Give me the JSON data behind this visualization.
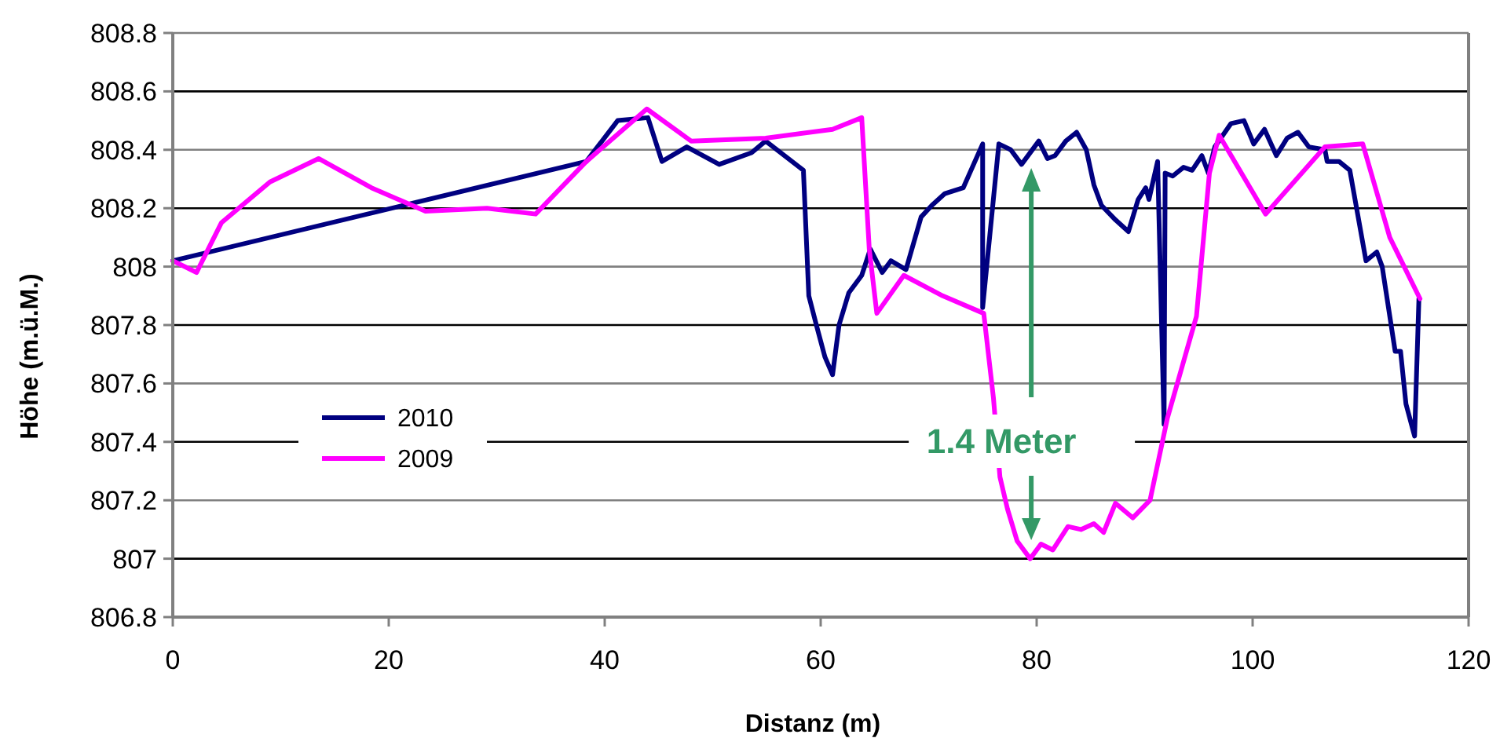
{
  "chart_data": {
    "type": "line",
    "xlabel": "Distanz (m)",
    "ylabel": "Höhe (m.ü.M.)",
    "xlim": [
      0,
      120
    ],
    "xticks": [
      0,
      20,
      40,
      60,
      80,
      100,
      120
    ],
    "ylim": [
      806.8,
      808.8
    ],
    "yticks": [
      {
        "value": 806.8,
        "label": "806.8"
      },
      {
        "value": 807,
        "label": "807"
      },
      {
        "value": 807.2,
        "label": "807.2"
      },
      {
        "value": 807.4,
        "label": "807.4"
      },
      {
        "value": 807.6,
        "label": "807.6"
      },
      {
        "value": 807.8,
        "label": "807.8"
      },
      {
        "value": 808,
        "label": "808"
      },
      {
        "value": 808.2,
        "label": "808.2"
      },
      {
        "value": 808.4,
        "label": "808.4"
      },
      {
        "value": 808.6,
        "label": "808.6"
      },
      {
        "value": 808.8,
        "label": "808.8"
      }
    ],
    "grid": "y",
    "legend": "left",
    "marker": "none",
    "line_style": "solid",
    "annotations": [
      "1.4 Meter"
    ],
    "series": [
      {
        "name": "2010",
        "color": "#000080",
        "x": [
          0,
          38.3,
          41.2,
          44.0,
          45.3,
          47.6,
          50.6,
          53.6,
          54.9,
          58.4,
          58.9,
          59.6,
          60.4,
          61.1,
          61.7,
          62.6,
          63.8,
          64.6,
          65.7,
          66.5,
          67.9,
          69.3,
          70.3,
          71.5,
          73.2,
          75.0,
          75.0,
          76.5,
          77.6,
          78.6,
          80.2,
          81.0,
          81.7,
          82.7,
          83.7,
          84.6,
          85.3,
          86.0,
          87.3,
          88.5,
          89.4,
          90.1,
          90.4,
          91.2,
          91.8,
          91.9,
          92.6,
          93.6,
          94.4,
          95.3,
          95.9,
          96.5,
          98.0,
          99.2,
          100.1,
          101.1,
          102.2,
          103.2,
          104.2,
          105.2,
          106.7,
          106.9,
          108.0,
          109.0,
          110.5,
          111.5,
          112.0,
          113.2,
          113.7,
          114.2,
          115.0,
          115.4
        ],
        "values": [
          808.02,
          808.36,
          808.5,
          808.51,
          808.36,
          808.41,
          808.35,
          808.39,
          808.43,
          808.33,
          807.9,
          807.8,
          807.69,
          807.63,
          807.8,
          807.91,
          807.97,
          808.06,
          807.98,
          808.02,
          807.99,
          808.17,
          808.21,
          808.25,
          808.27,
          808.42,
          807.86,
          808.42,
          808.4,
          808.35,
          808.43,
          808.37,
          808.38,
          808.43,
          808.46,
          808.4,
          808.28,
          808.21,
          808.16,
          808.12,
          808.23,
          808.27,
          808.23,
          808.36,
          807.46,
          808.32,
          808.31,
          808.34,
          808.33,
          808.38,
          808.32,
          808.41,
          808.49,
          808.5,
          808.42,
          808.47,
          808.38,
          808.44,
          808.46,
          808.41,
          808.4,
          808.36,
          808.36,
          808.33,
          808.02,
          808.05,
          808.0,
          807.71,
          807.71,
          807.53,
          807.42,
          807.89
        ]
      },
      {
        "name": "2009",
        "color": "#ff00ff",
        "x": [
          0,
          2.2,
          4.5,
          9.0,
          13.5,
          18.4,
          23.4,
          29.1,
          33.6,
          38.3,
          43.9,
          48.0,
          54.9,
          61.1,
          63.8,
          64.5,
          65.2,
          67.7,
          71.3,
          75.1,
          76.0,
          76.6,
          77.3,
          78.2,
          79.4,
          80.4,
          81.5,
          82.9,
          84.1,
          85.3,
          86.2,
          87.3,
          88.9,
          90.5,
          92.1,
          94.8,
          96.0,
          96.9,
          101.2,
          106.7,
          110.2,
          112.7,
          115.5
        ],
        "values": [
          808.02,
          807.98,
          808.15,
          808.29,
          808.37,
          808.27,
          808.19,
          808.2,
          808.18,
          808.36,
          808.54,
          808.43,
          808.44,
          808.47,
          808.51,
          808.06,
          807.84,
          807.97,
          807.9,
          807.84,
          807.55,
          807.28,
          807.17,
          807.06,
          807.0,
          807.05,
          807.03,
          807.11,
          807.1,
          807.12,
          807.09,
          807.19,
          807.14,
          807.2,
          807.48,
          807.83,
          808.32,
          808.45,
          808.18,
          808.41,
          808.42,
          808.1,
          807.89
        ]
      }
    ]
  }
}
